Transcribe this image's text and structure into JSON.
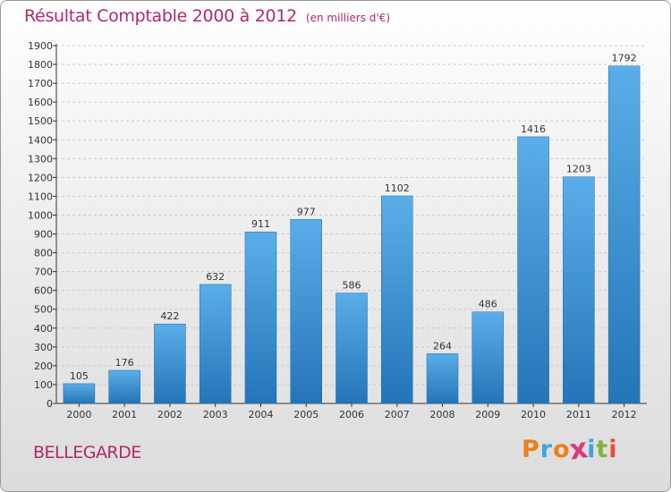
{
  "header": {
    "title": "Résultat Comptable 2000 à 2012",
    "subtitle": "(en milliers d'€)"
  },
  "footer": {
    "place": "BELLEGARDE",
    "logo": "Proxiti",
    "logo_colors": [
      "#e8821e",
      "#3fa7d6",
      "#e8821e",
      "#d93a7b",
      "#3fa7d6",
      "#7cb342",
      "#e84e3c"
    ]
  },
  "colors": {
    "title": "#b0286e",
    "bar_top": "#5aaee8",
    "bar_bottom": "#2475b8",
    "grid": "#cccccc",
    "axis": "#333333"
  },
  "chart_data": {
    "type": "bar",
    "title": "Résultat Comptable 2000 à 2012",
    "ylabel": "en milliers d'€",
    "xlabel": "",
    "categories": [
      "2000",
      "2001",
      "2002",
      "2003",
      "2004",
      "2005",
      "2006",
      "2007",
      "2008",
      "2009",
      "2010",
      "2011",
      "2012"
    ],
    "values": [
      105,
      176,
      422,
      632,
      911,
      977,
      586,
      1102,
      264,
      486,
      1416,
      1203,
      1792
    ],
    "ylim": [
      0,
      1900
    ],
    "yticks": [
      0,
      100,
      200,
      300,
      400,
      500,
      600,
      700,
      800,
      900,
      1000,
      1100,
      1200,
      1300,
      1400,
      1500,
      1600,
      1700,
      1800,
      1900
    ],
    "grid": true
  }
}
